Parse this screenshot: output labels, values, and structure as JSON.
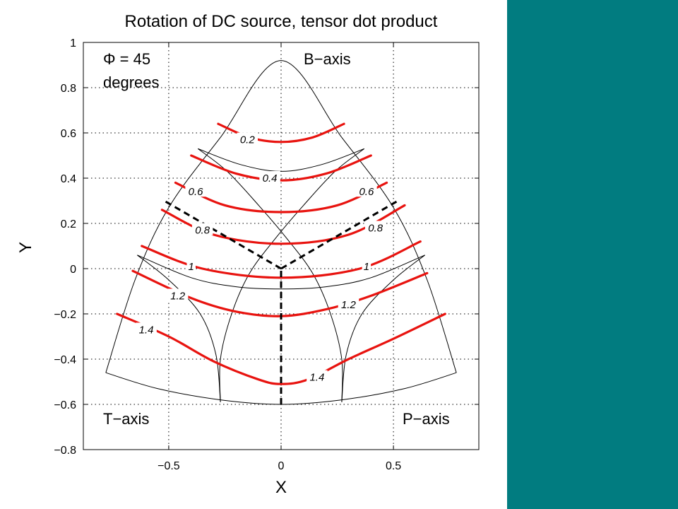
{
  "chart_data": {
    "type": "line",
    "title": "Rotation of DC source, tensor dot product",
    "xlabel": "X",
    "ylabel": "Y",
    "xlim": [
      -0.88,
      0.88
    ],
    "ylim": [
      -0.8,
      1.0
    ],
    "grid": true,
    "xticks": [
      -0.5,
      0,
      0.5
    ],
    "xtick_labels": [
      "−0.5",
      "0",
      "0.5"
    ],
    "yticks": [
      1,
      0.8,
      0.6,
      0.4,
      0.2,
      0,
      -0.2,
      -0.4,
      -0.6,
      -0.8
    ],
    "ytick_labels": [
      "1",
      "0.8",
      "0.6",
      "0.4",
      "0.2",
      "0",
      "−0.2",
      "−0.4",
      "−0.6",
      "−0.8"
    ],
    "annotations": {
      "phi": "Φ = 45",
      "degrees": "degrees",
      "b_axis": "B−axis",
      "t_axis": "T−axis",
      "p_axis": "P−axis"
    },
    "outline": [
      {
        "points": [
          [
            -0.78,
            -0.46
          ],
          [
            -0.65,
            -0.05
          ],
          [
            -0.5,
            0.27
          ],
          [
            -0.27,
            0.58
          ],
          [
            0,
            0.92
          ],
          [
            0.27,
            0.58
          ],
          [
            0.5,
            0.27
          ],
          [
            0.65,
            -0.05
          ],
          [
            0.78,
            -0.46
          ]
        ]
      },
      {
        "points": [
          [
            -0.78,
            -0.46
          ],
          [
            -0.55,
            -0.53
          ],
          [
            -0.27,
            -0.58
          ],
          [
            0,
            -0.6
          ],
          [
            0.27,
            -0.58
          ],
          [
            0.55,
            -0.53
          ],
          [
            0.78,
            -0.46
          ]
        ]
      },
      {
        "points": [
          [
            -0.64,
            0.06
          ],
          [
            -0.4,
            -0.04
          ],
          [
            -0.2,
            -0.08
          ],
          [
            0,
            -0.09
          ],
          [
            0.2,
            -0.08
          ],
          [
            0.4,
            -0.04
          ],
          [
            0.64,
            0.06
          ]
        ]
      },
      {
        "points": [
          [
            -0.37,
            0.53
          ],
          [
            -0.18,
            0.46
          ],
          [
            0,
            0.43
          ],
          [
            0.18,
            0.46
          ],
          [
            0.37,
            0.53
          ]
        ]
      },
      {
        "points": [
          [
            -0.37,
            0.53
          ],
          [
            -0.24,
            0.43
          ],
          [
            -0.1,
            0.28
          ],
          [
            0.02,
            0.14
          ],
          [
            0.14,
            -0.02
          ],
          [
            0.22,
            -0.2
          ],
          [
            0.27,
            -0.4
          ],
          [
            0.27,
            -0.59
          ]
        ]
      },
      {
        "points": [
          [
            0.37,
            0.53
          ],
          [
            0.24,
            0.43
          ],
          [
            0.1,
            0.28
          ],
          [
            -0.02,
            0.14
          ],
          [
            -0.14,
            -0.02
          ],
          [
            -0.22,
            -0.2
          ],
          [
            -0.27,
            -0.4
          ],
          [
            -0.27,
            -0.59
          ]
        ]
      },
      {
        "points": [
          [
            -0.64,
            0.06
          ],
          [
            -0.5,
            -0.05
          ],
          [
            -0.36,
            -0.2
          ],
          [
            -0.29,
            -0.38
          ],
          [
            -0.27,
            -0.59
          ]
        ]
      },
      {
        "points": [
          [
            0.64,
            0.06
          ],
          [
            0.5,
            -0.05
          ],
          [
            0.36,
            -0.2
          ],
          [
            0.29,
            -0.38
          ],
          [
            0.27,
            -0.59
          ]
        ]
      }
    ],
    "series": [
      {
        "label": "0.2",
        "label_at": [
          -0.15,
          0.57
        ],
        "points": [
          [
            -0.28,
            0.64
          ],
          [
            -0.14,
            0.58
          ],
          [
            0,
            0.56
          ],
          [
            0.14,
            0.58
          ],
          [
            0.28,
            0.64
          ]
        ]
      },
      {
        "label": "0.4",
        "label_at": [
          -0.05,
          0.4
        ],
        "points": [
          [
            -0.4,
            0.5
          ],
          [
            -0.2,
            0.42
          ],
          [
            0,
            0.39
          ],
          [
            0.2,
            0.42
          ],
          [
            0.4,
            0.5
          ]
        ]
      },
      {
        "label": "0.6",
        "label_at": [
          -0.38,
          0.34
        ],
        "label2": "0.6",
        "label2_at": [
          0.38,
          0.34
        ],
        "points": [
          [
            -0.47,
            0.38
          ],
          [
            -0.25,
            0.28
          ],
          [
            0,
            0.25
          ],
          [
            0.25,
            0.28
          ],
          [
            0.47,
            0.38
          ]
        ]
      },
      {
        "label": "0.8",
        "label_at": [
          -0.35,
          0.17
        ],
        "label2": "0.8",
        "label2_at": [
          0.42,
          0.18
        ],
        "points": [
          [
            -0.53,
            0.26
          ],
          [
            -0.3,
            0.15
          ],
          [
            0,
            0.11
          ],
          [
            0.3,
            0.15
          ],
          [
            0.55,
            0.28
          ]
        ]
      },
      {
        "label": "1",
        "label_at": [
          -0.4,
          0.01
        ],
        "label2": "1",
        "label2_at": [
          0.38,
          0.01
        ],
        "points": [
          [
            -0.62,
            0.1
          ],
          [
            -0.35,
            0.0
          ],
          [
            0,
            -0.04
          ],
          [
            0.35,
            0.0
          ],
          [
            0.62,
            0.12
          ]
        ]
      },
      {
        "label": "1.2",
        "label_at": [
          -0.46,
          -0.12
        ],
        "label2": "1.2",
        "label2_at": [
          0.3,
          -0.16
        ],
        "points": [
          [
            -0.66,
            -0.01
          ],
          [
            -0.4,
            -0.13
          ],
          [
            -0.2,
            -0.19
          ],
          [
            0,
            -0.21
          ],
          [
            0.2,
            -0.18
          ],
          [
            0.4,
            -0.12
          ],
          [
            0.65,
            -0.02
          ]
        ]
      },
      {
        "label": "1.4",
        "label_at": [
          -0.6,
          -0.27
        ],
        "label2": "1.4",
        "label2_at": [
          0.16,
          -0.48
        ],
        "points": [
          [
            -0.73,
            -0.2
          ],
          [
            -0.5,
            -0.3
          ],
          [
            -0.3,
            -0.41
          ],
          [
            -0.1,
            -0.49
          ],
          [
            0,
            -0.51
          ],
          [
            0.12,
            -0.49
          ],
          [
            0.3,
            -0.4
          ],
          [
            0.5,
            -0.31
          ],
          [
            0.73,
            -0.2
          ]
        ]
      }
    ],
    "dashed": [
      {
        "points": [
          [
            0,
            -0.6
          ],
          [
            0,
            0
          ]
        ]
      },
      {
        "points": [
          [
            0,
            0
          ],
          [
            -0.52,
            0.3
          ]
        ]
      },
      {
        "points": [
          [
            0,
            0
          ],
          [
            0.52,
            0.3
          ]
        ]
      }
    ]
  }
}
